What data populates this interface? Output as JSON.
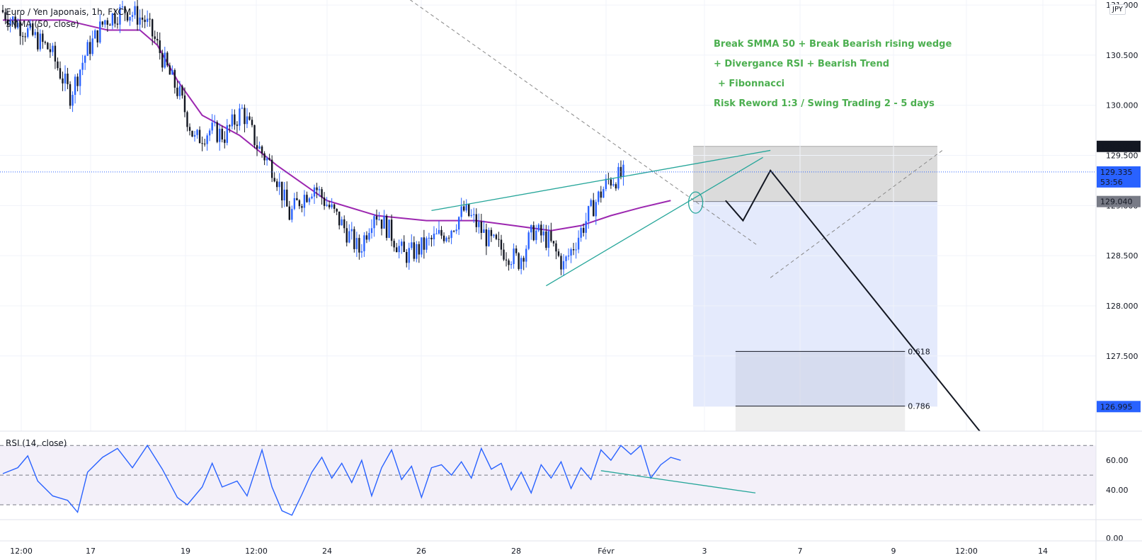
{
  "header": {
    "title": "Euro / Yen Japonais, 1h, FXCM",
    "indicator": "SMMA (50, close)",
    "currency": "JPY"
  },
  "rsi_panel": {
    "label": "RSI (14, close)"
  },
  "annotations": [
    "Break SMMA 50 + Break Bearish rising wedge",
    "+ Divergance RSI + Bearish Trend",
    "+  Fibonnacci",
    "Risk Reword 1:3 / Swing Trading 2 - 5 days"
  ],
  "price_badges": {
    "target": "129.590",
    "current": "129.335",
    "countdown": "53:56",
    "entry": "129.040",
    "stop": "126.995"
  },
  "fib_labels": [
    "0.618",
    "0.786"
  ],
  "colors": {
    "bull": "#2962ff",
    "bear": "#131722",
    "smma": "#9c27b0",
    "rsi": "#2962ff",
    "annotation": "#4caf50",
    "wedge": "#26a69a",
    "profit_zone": "#e3e9fc",
    "loss_zone": "#d9d9d9",
    "badge_current": "#2962ff"
  },
  "chart_data": [
    {
      "type": "candlestick",
      "title": "Euro / Yen Japonais, 1h, FXCM",
      "x_ticks": [
        "12:00",
        "17",
        "19",
        "12:00",
        "24",
        "26",
        "28",
        "Févr",
        "3",
        "7",
        "9",
        "12:00",
        "14"
      ],
      "y_ticks": [
        "131.000",
        "130.500",
        "130.000",
        "129.500",
        "129.000",
        "128.500",
        "128.000",
        "127.500"
      ],
      "ylim": [
        126.75,
        131.05
      ],
      "candle_count": 250,
      "price_path": [
        [
          0,
          130.95
        ],
        [
          10,
          130.75
        ],
        [
          20,
          130.55
        ],
        [
          28,
          130.1
        ],
        [
          34,
          130.5
        ],
        [
          42,
          130.85
        ],
        [
          50,
          130.95
        ],
        [
          58,
          130.85
        ],
        [
          62,
          130.65
        ],
        [
          68,
          130.3
        ],
        [
          72,
          130.1
        ],
        [
          78,
          129.65
        ],
        [
          84,
          129.75
        ],
        [
          90,
          129.7
        ],
        [
          97,
          129.95
        ],
        [
          103,
          129.6
        ],
        [
          110,
          129.35
        ],
        [
          116,
          128.9
        ],
        [
          120,
          129.05
        ],
        [
          126,
          129.2
        ],
        [
          130,
          129.05
        ],
        [
          136,
          128.85
        ],
        [
          144,
          128.55
        ],
        [
          150,
          128.95
        ],
        [
          156,
          128.75
        ],
        [
          162,
          128.5
        ],
        [
          167,
          128.55
        ],
        [
          173,
          128.65
        ],
        [
          180,
          128.75
        ],
        [
          186,
          128.95
        ],
        [
          190,
          128.85
        ],
        [
          196,
          128.65
        ],
        [
          202,
          128.55
        ],
        [
          208,
          128.45
        ],
        [
          214,
          128.75
        ],
        [
          220,
          128.65
        ],
        [
          226,
          128.4
        ],
        [
          232,
          128.7
        ],
        [
          238,
          129.0
        ],
        [
          244,
          129.25
        ],
        [
          250,
          129.3
        ],
        [
          256,
          129.25
        ],
        [
          262,
          128.95
        ],
        [
          268,
          129.2
        ],
        [
          274,
          129.35
        ],
        [
          280,
          129.3
        ]
      ],
      "series": [
        {
          "name": "SMMA (50, close)",
          "points": [
            [
              0,
              130.85
            ],
            [
              25,
              130.85
            ],
            [
              42,
              130.75
            ],
            [
              55,
              130.75
            ],
            [
              62,
              130.6
            ],
            [
              70,
              130.25
            ],
            [
              80,
              129.9
            ],
            [
              95,
              129.7
            ],
            [
              110,
              129.4
            ],
            [
              130,
              129.05
            ],
            [
              150,
              128.9
            ],
            [
              170,
              128.85
            ],
            [
              190,
              128.85
            ],
            [
              205,
              128.8
            ],
            [
              220,
              128.75
            ],
            [
              232,
              128.8
            ],
            [
              244,
              128.9
            ],
            [
              256,
              128.98
            ],
            [
              268,
              129.05
            ]
          ]
        }
      ],
      "trend_lines": {
        "downtrend_dashed": [
          [
            155,
            131.2
          ],
          [
            303,
            128.6
          ]
        ],
        "wedge_upper": [
          [
            172,
            128.95
          ],
          [
            308,
            129.55
          ]
        ],
        "wedge_lower": [
          [
            218,
            128.2
          ],
          [
            305,
            129.48
          ]
        ],
        "projection_solid": [
          [
            290,
            129.05
          ],
          [
            297,
            128.85
          ],
          [
            308,
            129.35
          ],
          [
            392,
            126.75
          ]
        ],
        "projection_dashed": [
          [
            308,
            128.28
          ],
          [
            377,
            129.55
          ]
        ]
      },
      "position": {
        "target": 129.59,
        "entry": 129.04,
        "stop": 126.995
      },
      "fibonacci": [
        {
          "level": "0.618",
          "price": 127.545
        },
        {
          "level": "0.786",
          "price": 127.0
        }
      ]
    },
    {
      "type": "line",
      "title": "RSI (14, close)",
      "y_ticks": [
        "60.00",
        "40.00",
        "0.00"
      ],
      "bands": [
        70,
        50,
        30
      ],
      "ylim": [
        20,
        72
      ],
      "series": [
        {
          "name": "RSI (14, close)",
          "points": [
            [
              0,
              51
            ],
            [
              6,
              55
            ],
            [
              10,
              63
            ],
            [
              14,
              46
            ],
            [
              20,
              36
            ],
            [
              26,
              33
            ],
            [
              30,
              25
            ],
            [
              34,
              52
            ],
            [
              40,
              62
            ],
            [
              46,
              68
            ],
            [
              52,
              55
            ],
            [
              58,
              70
            ],
            [
              64,
              54
            ],
            [
              70,
              35
            ],
            [
              74,
              30
            ],
            [
              80,
              42
            ],
            [
              84,
              58
            ],
            [
              88,
              42
            ],
            [
              94,
              46
            ],
            [
              98,
              36
            ],
            [
              104,
              67
            ],
            [
              108,
              42
            ],
            [
              112,
              26
            ],
            [
              116,
              23
            ],
            [
              120,
              37
            ],
            [
              124,
              52
            ],
            [
              128,
              62
            ],
            [
              132,
              48
            ],
            [
              136,
              58
            ],
            [
              140,
              45
            ],
            [
              144,
              60
            ],
            [
              148,
              36
            ],
            [
              152,
              55
            ],
            [
              156,
              67
            ],
            [
              160,
              47
            ],
            [
              164,
              56
            ],
            [
              168,
              35
            ],
            [
              172,
              55
            ],
            [
              176,
              57
            ],
            [
              180,
              50
            ],
            [
              184,
              59
            ],
            [
              188,
              48
            ],
            [
              192,
              68
            ],
            [
              196,
              54
            ],
            [
              200,
              58
            ],
            [
              204,
              40
            ],
            [
              208,
              52
            ],
            [
              212,
              38
            ],
            [
              216,
              57
            ],
            [
              220,
              48
            ],
            [
              224,
              59
            ],
            [
              228,
              41
            ],
            [
              232,
              55
            ],
            [
              236,
              47
            ],
            [
              240,
              67
            ],
            [
              244,
              60
            ],
            [
              248,
              70
            ],
            [
              252,
              64
            ],
            [
              256,
              70
            ],
            [
              260,
              48
            ],
            [
              264,
              57
            ],
            [
              268,
              62
            ],
            [
              272,
              60
            ]
          ]
        }
      ],
      "divergence_line": [
        [
          240,
          53
        ],
        [
          302,
          38
        ]
      ]
    }
  ]
}
